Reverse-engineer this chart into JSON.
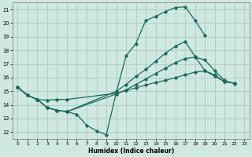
{
  "title": "",
  "xlabel": "Humidex (Indice chaleur)",
  "xlim": [
    -0.5,
    23.5
  ],
  "ylim": [
    11.5,
    21.5
  ],
  "xticks": [
    0,
    1,
    2,
    3,
    4,
    5,
    6,
    7,
    8,
    9,
    10,
    11,
    12,
    13,
    14,
    15,
    16,
    17,
    18,
    19,
    20,
    21,
    22,
    23
  ],
  "yticks": [
    12,
    13,
    14,
    15,
    16,
    17,
    18,
    19,
    20,
    21
  ],
  "bg_color": "#cfe8e0",
  "grid_color": "#aaccc4",
  "line_color": "#1a6b5e",
  "curves": [
    {
      "x": [
        0,
        1,
        2,
        3,
        4,
        5,
        6,
        7,
        8,
        9,
        10,
        11,
        12,
        13,
        14,
        15,
        16,
        17,
        18,
        19
      ],
      "y": [
        15.3,
        14.7,
        14.4,
        13.8,
        13.6,
        13.5,
        13.3,
        12.5,
        12.1,
        11.8,
        14.9,
        17.6,
        18.5,
        20.2,
        20.5,
        20.85,
        21.15,
        21.2,
        20.2,
        19.1
      ]
    },
    {
      "x": [
        0,
        1,
        2,
        3,
        4,
        5,
        10,
        11,
        12,
        13,
        14,
        15,
        16,
        17,
        18,
        19,
        20,
        21,
        22
      ],
      "y": [
        15.3,
        14.7,
        14.4,
        13.8,
        13.6,
        13.5,
        15.0,
        15.5,
        16.1,
        16.6,
        17.2,
        17.8,
        18.3,
        18.65,
        17.55,
        16.5,
        16.2,
        15.7,
        15.6
      ]
    },
    {
      "x": [
        0,
        1,
        2,
        3,
        4,
        5,
        10,
        11,
        12,
        13,
        14,
        15,
        16,
        17,
        18,
        19,
        20,
        21,
        22
      ],
      "y": [
        15.3,
        14.7,
        14.4,
        13.8,
        13.6,
        13.5,
        14.8,
        15.1,
        15.5,
        15.9,
        16.3,
        16.7,
        17.1,
        17.4,
        17.5,
        17.3,
        16.5,
        15.8,
        15.55
      ]
    },
    {
      "x": [
        0,
        1,
        2,
        3,
        4,
        5,
        10,
        11,
        12,
        13,
        14,
        15,
        16,
        17,
        18,
        19,
        20,
        21,
        22
      ],
      "y": [
        15.3,
        14.7,
        14.4,
        14.35,
        14.4,
        14.4,
        14.85,
        15.05,
        15.25,
        15.45,
        15.65,
        15.8,
        16.0,
        16.2,
        16.4,
        16.5,
        16.1,
        15.7,
        15.6
      ]
    }
  ]
}
